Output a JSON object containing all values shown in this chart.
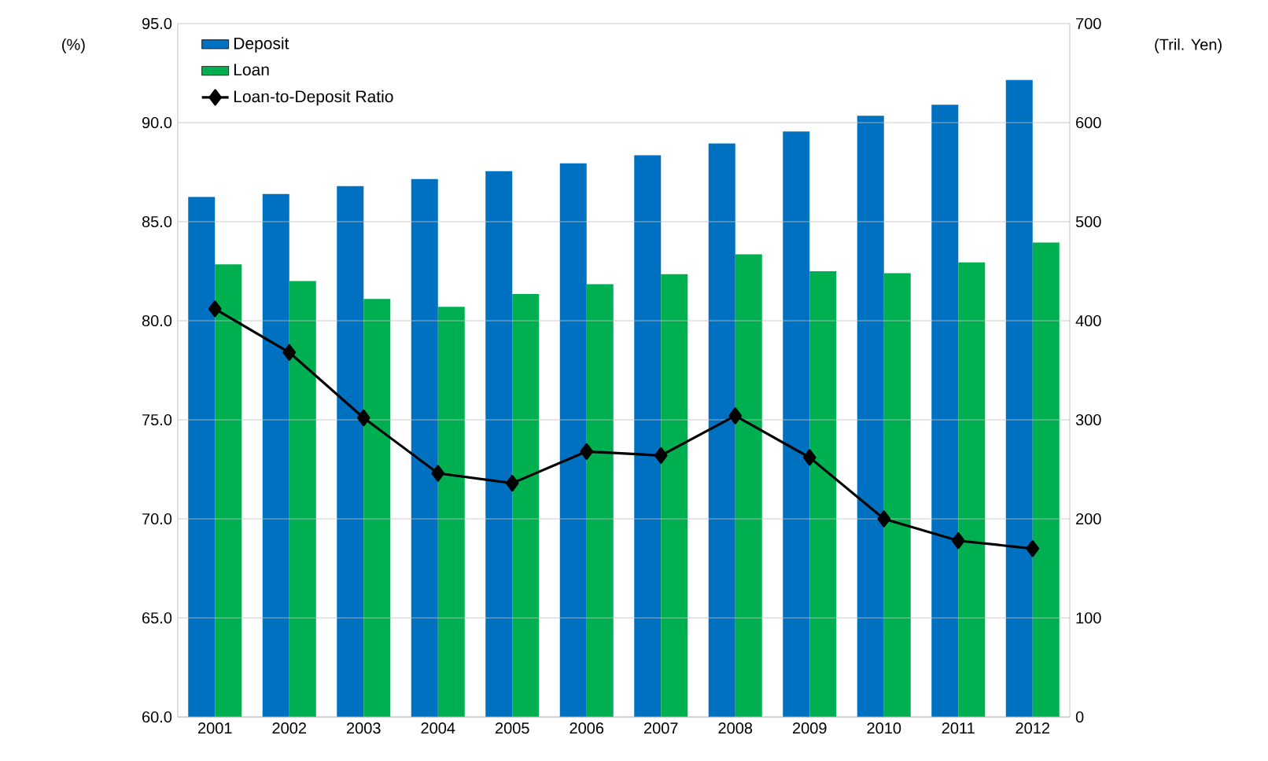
{
  "chart_data": {
    "type": "bar",
    "categories": [
      "2001",
      "2002",
      "2003",
      "2004",
      "2005",
      "2006",
      "2007",
      "2008",
      "2009",
      "2010",
      "2011",
      "2012"
    ],
    "ylabel": "(%)",
    "y2label": "(Tril. Yen)",
    "ylim": [
      60,
      95
    ],
    "yticks": [
      {
        "value": 60,
        "label": "60.0"
      },
      {
        "value": 65,
        "label": "65.0"
      },
      {
        "value": 70,
        "label": "70.0"
      },
      {
        "value": 75,
        "label": "75.0"
      },
      {
        "value": 80,
        "label": "80.0"
      },
      {
        "value": 85,
        "label": "85.0"
      },
      {
        "value": 90,
        "label": "90.0"
      },
      {
        "value": 95,
        "label": "95.0"
      }
    ],
    "y2lim": [
      0,
      700
    ],
    "y2ticks": [
      0,
      100,
      200,
      300,
      400,
      500,
      600,
      700
    ],
    "grid": "y",
    "legend": "top left",
    "series": [
      {
        "name": "Deposit",
        "axis": "y2",
        "color": "#0070c0",
        "values": [
          525,
          528,
          536,
          543,
          551,
          559,
          567,
          579,
          591,
          607,
          618,
          643
        ]
      },
      {
        "name": "Loan",
        "axis": "y2",
        "color": "#00b050",
        "values": [
          457,
          440,
          422,
          414,
          427,
          437,
          447,
          467,
          450,
          448,
          459,
          479
        ]
      },
      {
        "name": "Loan-to-Deposit Ratio",
        "type": "line",
        "axis": "y",
        "color": "#000000",
        "marker": "diamond",
        "line_style": "solid",
        "values": [
          80.6,
          78.4,
          75.1,
          72.3,
          71.8,
          73.4,
          73.2,
          75.2,
          73.1,
          70.0,
          68.9,
          68.5
        ]
      }
    ]
  }
}
